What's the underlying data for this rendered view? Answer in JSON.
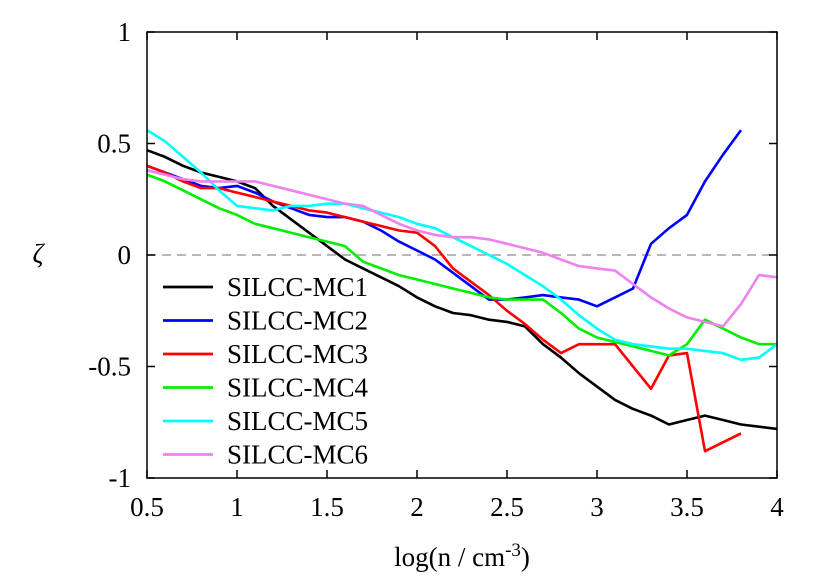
{
  "chart_data": {
    "type": "line",
    "title": "",
    "xlabel_main": "log(n / cm",
    "xlabel_sup": "-3",
    "xlabel_end": ")",
    "ylabel": "ζ",
    "xlim": [
      0.5,
      4
    ],
    "ylim": [
      -1,
      1
    ],
    "xticks": [
      0.5,
      1,
      1.5,
      2,
      2.5,
      3,
      3.5,
      4
    ],
    "xtick_labels": [
      "0.5",
      "1",
      "1.5",
      "2",
      "2.5",
      "3",
      "3.5",
      "4"
    ],
    "yticks": [
      -1,
      -0.5,
      0,
      0.5,
      1
    ],
    "ytick_labels": [
      "-1",
      "-0.5",
      "0",
      "0.5",
      "1"
    ],
    "reference_line": {
      "y": 0,
      "style": "dashed",
      "color": "#a0a0a0"
    },
    "legend_position": "left",
    "series": [
      {
        "name": "SILCC-MC1",
        "color": "#000000",
        "x": [
          0.5,
          0.6,
          0.7,
          0.8,
          0.9,
          1.0,
          1.1,
          1.2,
          1.3,
          1.4,
          1.5,
          1.6,
          1.7,
          1.8,
          1.9,
          2.0,
          2.1,
          2.2,
          2.3,
          2.4,
          2.5,
          2.6,
          2.7,
          2.8,
          2.9,
          3.0,
          3.1,
          3.2,
          3.3,
          3.4,
          3.5,
          3.6,
          3.7,
          3.8,
          3.9,
          4.0
        ],
        "y": [
          0.47,
          0.44,
          0.4,
          0.37,
          0.35,
          0.33,
          0.3,
          0.22,
          0.16,
          0.1,
          0.04,
          -0.02,
          -0.06,
          -0.1,
          -0.14,
          -0.19,
          -0.23,
          -0.26,
          -0.27,
          -0.29,
          -0.3,
          -0.32,
          -0.4,
          -0.46,
          -0.53,
          -0.59,
          -0.65,
          -0.69,
          -0.72,
          -0.76,
          -0.74,
          -0.72,
          -0.74,
          -0.76,
          -0.77,
          -0.78
        ]
      },
      {
        "name": "SILCC-MC2",
        "color": "#0000ff",
        "x": [
          0.5,
          0.6,
          0.7,
          0.8,
          0.9,
          1.0,
          1.1,
          1.2,
          1.3,
          1.4,
          1.5,
          1.6,
          1.7,
          1.8,
          1.9,
          2.0,
          2.1,
          2.2,
          2.3,
          2.4,
          2.5,
          2.6,
          2.7,
          2.8,
          2.9,
          3.0,
          3.1,
          3.2,
          3.3,
          3.4,
          3.5,
          3.6,
          3.7,
          3.8
        ],
        "y": [
          0.4,
          0.37,
          0.34,
          0.31,
          0.3,
          0.31,
          0.28,
          0.24,
          0.21,
          0.18,
          0.17,
          0.17,
          0.15,
          0.11,
          0.06,
          0.02,
          -0.02,
          -0.08,
          -0.14,
          -0.2,
          -0.2,
          -0.19,
          -0.18,
          -0.19,
          -0.2,
          -0.23,
          -0.19,
          -0.15,
          0.05,
          0.12,
          0.18,
          0.33,
          0.45,
          0.56
        ]
      },
      {
        "name": "SILCC-MC3",
        "color": "#ff0000",
        "x": [
          0.5,
          0.6,
          0.7,
          0.8,
          0.9,
          1.0,
          1.1,
          1.2,
          1.3,
          1.4,
          1.5,
          1.6,
          1.7,
          1.8,
          1.9,
          2.0,
          2.1,
          2.2,
          2.3,
          2.4,
          2.5,
          2.6,
          2.7,
          2.8,
          2.9,
          3.0,
          3.1,
          3.2,
          3.3,
          3.4,
          3.5,
          3.6,
          3.7,
          3.8
        ],
        "y": [
          0.4,
          0.37,
          0.33,
          0.3,
          0.3,
          0.28,
          0.26,
          0.24,
          0.22,
          0.2,
          0.19,
          0.17,
          0.15,
          0.13,
          0.11,
          0.1,
          0.04,
          -0.06,
          -0.12,
          -0.18,
          -0.25,
          -0.31,
          -0.38,
          -0.44,
          -0.4,
          -0.4,
          -0.4,
          -0.5,
          -0.6,
          -0.45,
          -0.44,
          -0.88,
          -0.84,
          -0.8
        ]
      },
      {
        "name": "SILCC-MC4",
        "color": "#00ee00",
        "x": [
          0.5,
          0.6,
          0.7,
          0.8,
          0.9,
          1.0,
          1.1,
          1.2,
          1.3,
          1.4,
          1.5,
          1.6,
          1.7,
          1.8,
          1.9,
          2.0,
          2.1,
          2.2,
          2.3,
          2.4,
          2.5,
          2.6,
          2.7,
          2.8,
          2.9,
          3.0,
          3.1,
          3.2,
          3.3,
          3.4,
          3.5,
          3.6,
          3.7,
          3.8,
          3.9,
          4.0
        ],
        "y": [
          0.36,
          0.33,
          0.29,
          0.25,
          0.21,
          0.18,
          0.14,
          0.12,
          0.1,
          0.08,
          0.06,
          0.04,
          -0.03,
          -0.06,
          -0.09,
          -0.11,
          -0.13,
          -0.15,
          -0.17,
          -0.19,
          -0.2,
          -0.2,
          -0.2,
          -0.26,
          -0.33,
          -0.37,
          -0.39,
          -0.41,
          -0.43,
          -0.45,
          -0.4,
          -0.29,
          -0.33,
          -0.37,
          -0.4,
          -0.4
        ]
      },
      {
        "name": "SILCC-MC5",
        "color": "#00ffff",
        "x": [
          0.5,
          0.6,
          0.7,
          0.8,
          0.9,
          1.0,
          1.1,
          1.2,
          1.3,
          1.4,
          1.5,
          1.6,
          1.7,
          1.8,
          1.9,
          2.0,
          2.1,
          2.2,
          2.3,
          2.4,
          2.5,
          2.6,
          2.7,
          2.8,
          2.9,
          3.0,
          3.1,
          3.2,
          3.3,
          3.4,
          3.5,
          3.6,
          3.7,
          3.8,
          3.9,
          4.0
        ],
        "y": [
          0.56,
          0.51,
          0.44,
          0.37,
          0.29,
          0.22,
          0.21,
          0.2,
          0.22,
          0.22,
          0.23,
          0.23,
          0.21,
          0.19,
          0.17,
          0.14,
          0.12,
          0.08,
          0.04,
          0.0,
          -0.04,
          -0.09,
          -0.14,
          -0.2,
          -0.27,
          -0.33,
          -0.38,
          -0.4,
          -0.41,
          -0.42,
          -0.42,
          -0.43,
          -0.44,
          -0.47,
          -0.46,
          -0.4
        ]
      },
      {
        "name": "SILCC-MC6",
        "color": "#ee82ee",
        "x": [
          0.5,
          0.6,
          0.7,
          0.8,
          0.9,
          1.0,
          1.1,
          1.2,
          1.3,
          1.4,
          1.5,
          1.6,
          1.7,
          1.8,
          1.9,
          2.0,
          2.1,
          2.2,
          2.3,
          2.4,
          2.5,
          2.6,
          2.7,
          2.8,
          2.9,
          3.0,
          3.1,
          3.2,
          3.3,
          3.4,
          3.5,
          3.6,
          3.7,
          3.8,
          3.9,
          4.0
        ],
        "y": [
          0.38,
          0.36,
          0.34,
          0.33,
          0.33,
          0.33,
          0.33,
          0.31,
          0.29,
          0.27,
          0.25,
          0.23,
          0.22,
          0.18,
          0.14,
          0.11,
          0.09,
          0.08,
          0.08,
          0.07,
          0.05,
          0.03,
          0.01,
          -0.02,
          -0.05,
          -0.06,
          -0.07,
          -0.13,
          -0.19,
          -0.24,
          -0.28,
          -0.3,
          -0.32,
          -0.22,
          -0.09,
          -0.1
        ]
      }
    ]
  }
}
